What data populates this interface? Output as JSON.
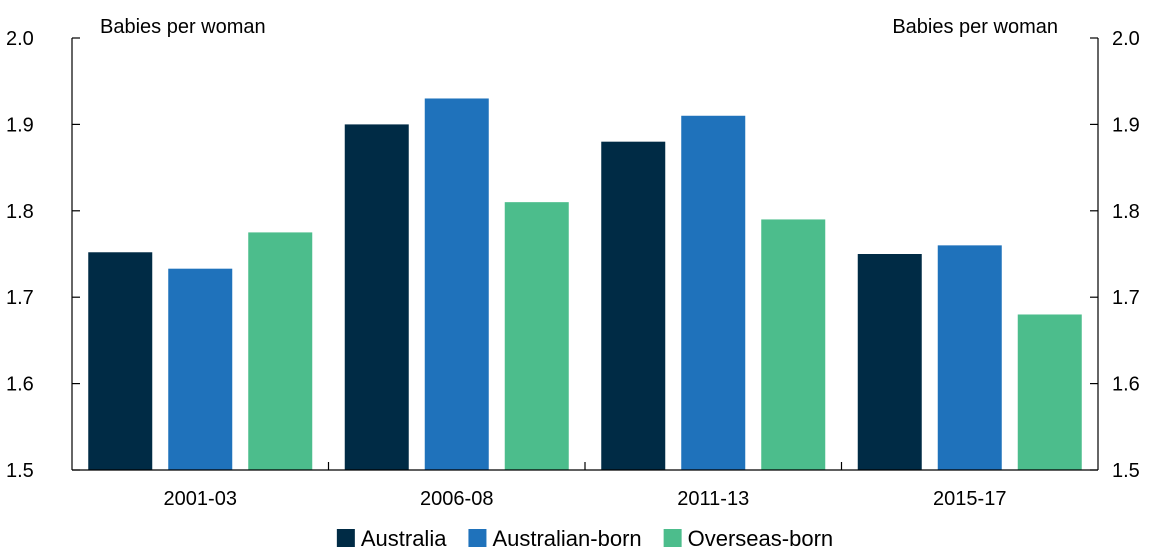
{
  "chart_data": {
    "type": "bar",
    "categories": [
      "2001-03",
      "2006-08",
      "2011-13",
      "2015-17"
    ],
    "series": [
      {
        "name": "Australia",
        "values": [
          1.752,
          1.9,
          1.88,
          1.75
        ],
        "color": "#002b45"
      },
      {
        "name": "Australian-born",
        "values": [
          1.733,
          1.93,
          1.91,
          1.76
        ],
        "color": "#1f72bb"
      },
      {
        "name": "Overseas-born",
        "values": [
          1.775,
          1.81,
          1.79,
          1.68
        ],
        "color": "#4cbd8c"
      }
    ],
    "ylim": [
      1.5,
      2.0
    ],
    "yticks": [
      "1.5",
      "1.6",
      "1.7",
      "1.8",
      "1.9",
      "2.0"
    ],
    "left_unit_label": "Babies per woman",
    "right_unit_label": "Babies per woman",
    "grid": false,
    "legend_position": "bottom"
  }
}
